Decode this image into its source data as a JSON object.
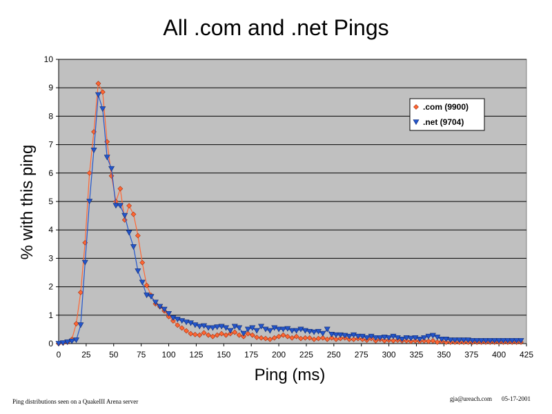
{
  "chart_data": {
    "type": "line",
    "title": "All .com and .net Pings",
    "xlabel": "Ping (ms)",
    "ylabel": "% with this ping",
    "xlim": [
      0,
      425
    ],
    "ylim": [
      0,
      10
    ],
    "xticks": [
      0,
      25,
      50,
      75,
      100,
      125,
      150,
      175,
      200,
      225,
      250,
      275,
      300,
      325,
      350,
      375,
      400,
      425
    ],
    "yticks": [
      0,
      1,
      2,
      3,
      4,
      5,
      6,
      7,
      8,
      9,
      10
    ],
    "grid": "horizontal",
    "legend_position": "top-right",
    "x": [
      0,
      4,
      8,
      12,
      16,
      20,
      24,
      28,
      32,
      36,
      40,
      44,
      48,
      52,
      56,
      60,
      64,
      68,
      72,
      76,
      80,
      84,
      88,
      92,
      96,
      100,
      104,
      108,
      112,
      116,
      120,
      124,
      128,
      132,
      136,
      140,
      144,
      148,
      152,
      156,
      160,
      164,
      168,
      172,
      176,
      180,
      184,
      188,
      192,
      196,
      200,
      204,
      208,
      212,
      216,
      220,
      224,
      228,
      232,
      236,
      240,
      244,
      248,
      252,
      256,
      260,
      264,
      268,
      272,
      276,
      280,
      284,
      288,
      292,
      296,
      300,
      304,
      308,
      312,
      316,
      320,
      324,
      328,
      332,
      336,
      340,
      344,
      348,
      352,
      356,
      360,
      364,
      368,
      372,
      376,
      380,
      384,
      388,
      392,
      396,
      400,
      404,
      408,
      412,
      416,
      420
    ],
    "series": [
      {
        "name": ".com (9900)",
        "color": "#ff6633",
        "marker": "diamond",
        "values": [
          0.0,
          0.02,
          0.05,
          0.15,
          0.7,
          1.8,
          3.55,
          6.0,
          7.45,
          9.15,
          8.85,
          7.1,
          5.9,
          5.0,
          5.45,
          4.35,
          4.85,
          4.55,
          3.8,
          2.85,
          2.05,
          1.7,
          1.4,
          1.3,
          1.15,
          0.95,
          0.8,
          0.65,
          0.55,
          0.45,
          0.35,
          0.32,
          0.3,
          0.38,
          0.3,
          0.25,
          0.3,
          0.35,
          0.3,
          0.35,
          0.4,
          0.3,
          0.25,
          0.35,
          0.3,
          0.22,
          0.2,
          0.18,
          0.15,
          0.2,
          0.25,
          0.3,
          0.25,
          0.2,
          0.25,
          0.18,
          0.2,
          0.2,
          0.15,
          0.18,
          0.2,
          0.15,
          0.2,
          0.15,
          0.18,
          0.2,
          0.15,
          0.15,
          0.18,
          0.15,
          0.12,
          0.18,
          0.1,
          0.15,
          0.1,
          0.12,
          0.1,
          0.12,
          0.1,
          0.1,
          0.08,
          0.1,
          0.08,
          0.1,
          0.08,
          0.1,
          0.05,
          0.08,
          0.05,
          0.05,
          0.05,
          0.05,
          0.05,
          0.05,
          0.05,
          0.05,
          0.05,
          0.05,
          0.05,
          0.05,
          0.05,
          0.05,
          0.05,
          0.05,
          0.05,
          0.05
        ]
      },
      {
        "name": ".net (9704)",
        "color": "#2255cc",
        "marker": "triangle-down",
        "values": [
          0.0,
          0.02,
          0.05,
          0.08,
          0.12,
          0.65,
          2.85,
          5.0,
          6.8,
          8.75,
          8.25,
          6.55,
          6.15,
          4.85,
          4.85,
          4.5,
          3.9,
          3.4,
          2.55,
          2.15,
          1.7,
          1.65,
          1.45,
          1.3,
          1.2,
          1.05,
          0.9,
          0.85,
          0.8,
          0.75,
          0.72,
          0.65,
          0.6,
          0.62,
          0.55,
          0.55,
          0.58,
          0.6,
          0.55,
          0.45,
          0.6,
          0.55,
          0.35,
          0.5,
          0.55,
          0.45,
          0.6,
          0.5,
          0.45,
          0.55,
          0.5,
          0.5,
          0.52,
          0.45,
          0.45,
          0.5,
          0.45,
          0.42,
          0.4,
          0.42,
          0.35,
          0.5,
          0.32,
          0.3,
          0.3,
          0.28,
          0.25,
          0.3,
          0.25,
          0.25,
          0.2,
          0.25,
          0.2,
          0.2,
          0.22,
          0.2,
          0.25,
          0.2,
          0.15,
          0.2,
          0.18,
          0.2,
          0.15,
          0.2,
          0.25,
          0.28,
          0.22,
          0.15,
          0.15,
          0.12,
          0.12,
          0.12,
          0.12,
          0.12,
          0.1,
          0.1,
          0.1,
          0.1,
          0.1,
          0.1,
          0.1,
          0.1,
          0.1,
          0.1,
          0.1,
          0.1
        ]
      }
    ]
  },
  "footer": {
    "left": "Ping distributions seen on a QuakeIII Arena server",
    "email": "gja@ureach.com",
    "date": "05-17-2001"
  }
}
